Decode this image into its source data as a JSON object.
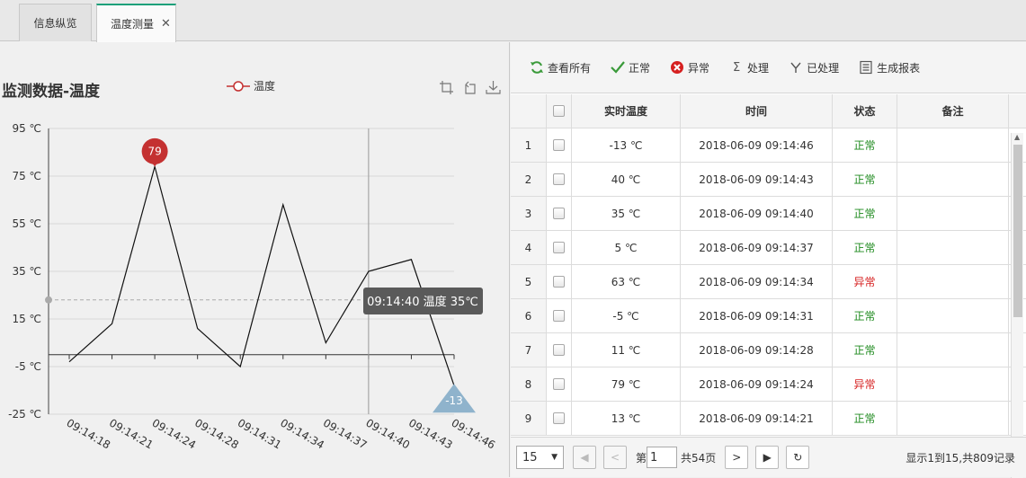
{
  "tabs": [
    {
      "label": "信息纵览"
    },
    {
      "label": "温度测量"
    }
  ],
  "chart": {
    "title": "监测数据-温度",
    "legend": "温度",
    "tooltip": "09:14:40 温度 35℃",
    "max_label": "79",
    "min_label": "-13",
    "colors": {
      "line": "#111111",
      "max_pin": "#c43131",
      "min_pin": "#8fb3cc",
      "tooltip_bg": "#5a5a5a"
    }
  },
  "chart_data": {
    "type": "line",
    "title": "监测数据-温度",
    "x": [
      "09:14:18",
      "09:14:21",
      "09:14:24",
      "09:14:28",
      "09:14:31",
      "09:14:34",
      "09:14:37",
      "09:14:40",
      "09:14:43",
      "09:14:46"
    ],
    "series": [
      {
        "name": "温度",
        "values": [
          -3,
          13,
          79,
          11,
          -5,
          63,
          5,
          35,
          40,
          -13
        ]
      }
    ],
    "y_ticks": [
      "95 ℃",
      "75 ℃",
      "55 ℃",
      "35 ℃",
      "15 ℃",
      "-5 ℃",
      "-25 ℃"
    ],
    "ylim": [
      -25,
      95
    ],
    "grid": true,
    "markers": {
      "max": 79,
      "min": -13
    },
    "crosshair": {
      "x": "09:14:40",
      "y": 23
    }
  },
  "toolbar": {
    "buttons": [
      {
        "label": "查看所有",
        "icon": "refresh-icon"
      },
      {
        "label": "正常",
        "icon": "check-icon"
      },
      {
        "label": "异常",
        "icon": "error-icon"
      },
      {
        "label": "处理",
        "icon": "sigma-icon"
      },
      {
        "label": "已处理",
        "icon": "filter-icon"
      },
      {
        "label": "生成报表",
        "icon": "report-icon"
      }
    ]
  },
  "table": {
    "headers": [
      "实时温度",
      "时间",
      "状态",
      "备注"
    ],
    "rows": [
      {
        "no": "1",
        "temp": "-13 ℃",
        "time": "2018-06-09 09:14:46",
        "status": "正常",
        "ok": true
      },
      {
        "no": "2",
        "temp": "40 ℃",
        "time": "2018-06-09 09:14:43",
        "status": "正常",
        "ok": true
      },
      {
        "no": "3",
        "temp": "35 ℃",
        "time": "2018-06-09 09:14:40",
        "status": "正常",
        "ok": true
      },
      {
        "no": "4",
        "temp": "5 ℃",
        "time": "2018-06-09 09:14:37",
        "status": "正常",
        "ok": true
      },
      {
        "no": "5",
        "temp": "63 ℃",
        "time": "2018-06-09 09:14:34",
        "status": "异常",
        "ok": false
      },
      {
        "no": "6",
        "temp": "-5 ℃",
        "time": "2018-06-09 09:14:31",
        "status": "正常",
        "ok": true
      },
      {
        "no": "7",
        "temp": "11 ℃",
        "time": "2018-06-09 09:14:28",
        "status": "正常",
        "ok": true
      },
      {
        "no": "8",
        "temp": "79 ℃",
        "time": "2018-06-09 09:14:24",
        "status": "异常",
        "ok": false
      },
      {
        "no": "9",
        "temp": "13 ℃",
        "time": "2018-06-09 09:14:21",
        "status": "正常",
        "ok": true
      }
    ],
    "status_colors": {
      "ok": "#1e8a1e",
      "bad": "#d62020"
    }
  },
  "pager": {
    "page_size": "15",
    "page_prefix": "第",
    "page": "1",
    "page_total": "共54页",
    "info": "显示1到15,共809记录"
  }
}
